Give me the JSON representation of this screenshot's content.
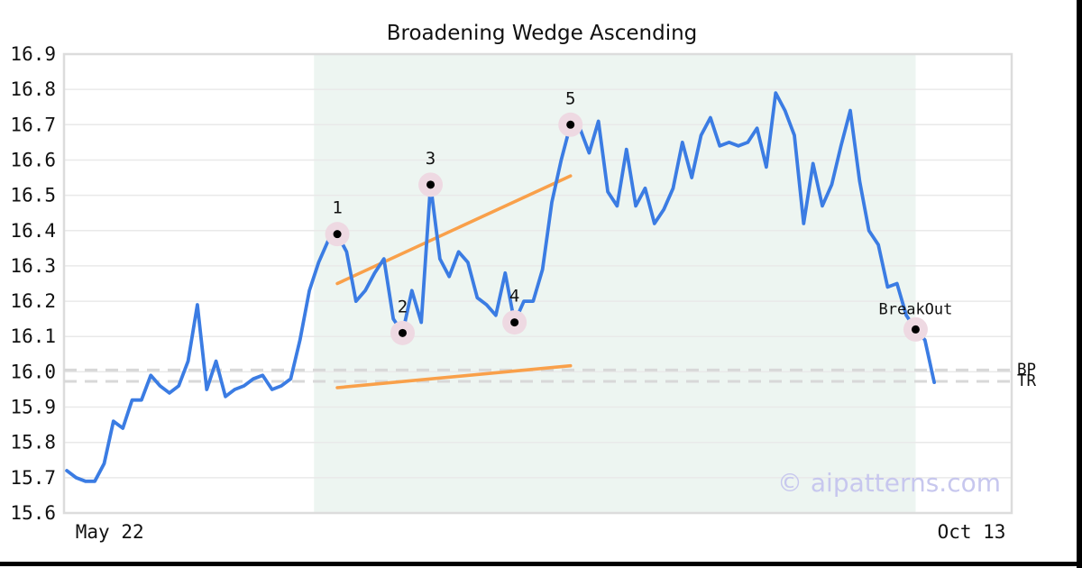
{
  "chart_data": {
    "type": "line",
    "title": "Broadening Wedge Ascending",
    "watermark": "© aipatterns.com",
    "ylim": [
      15.6,
      16.9
    ],
    "xlim": [
      -0.3,
      101.3
    ],
    "y_ticks": [
      "15.6",
      "15.7",
      "15.8",
      "15.9",
      "16.0",
      "16.1",
      "16.2",
      "16.3",
      "16.4",
      "16.5",
      "16.6",
      "16.7",
      "16.8",
      "16.9"
    ],
    "x_ticks": [
      {
        "label": "May 22",
        "index": 4.6
      },
      {
        "label": "Oct 13",
        "index": 97
      }
    ],
    "series": [
      {
        "name": "price",
        "color": "#3b7ce3",
        "values": [
          15.72,
          15.7,
          15.69,
          15.69,
          15.74,
          15.86,
          15.84,
          15.92,
          15.92,
          15.99,
          15.96,
          15.94,
          15.96,
          16.03,
          16.19,
          15.95,
          16.03,
          15.93,
          15.95,
          15.96,
          15.98,
          15.99,
          15.95,
          15.96,
          15.98,
          16.09,
          16.23,
          16.31,
          16.37,
          16.39,
          16.34,
          16.2,
          16.23,
          16.28,
          16.32,
          16.15,
          16.11,
          16.23,
          16.14,
          16.53,
          16.32,
          16.27,
          16.34,
          16.31,
          16.21,
          16.19,
          16.16,
          16.28,
          16.14,
          16.2,
          16.2,
          16.29,
          16.48,
          16.6,
          16.7,
          16.69,
          16.62,
          16.71,
          16.51,
          16.47,
          16.63,
          16.47,
          16.52,
          16.42,
          16.46,
          16.52,
          16.65,
          16.55,
          16.67,
          16.72,
          16.64,
          16.65,
          16.64,
          16.65,
          16.69,
          16.58,
          16.79,
          16.74,
          16.67,
          16.42,
          16.59,
          16.47,
          16.53,
          16.64,
          16.74,
          16.54,
          16.4,
          16.36,
          16.24,
          16.25,
          16.16,
          16.12,
          16.09,
          15.97
        ]
      }
    ],
    "pattern_points": [
      {
        "label": "1",
        "index": 29,
        "value": 16.39
      },
      {
        "label": "2",
        "index": 36,
        "value": 16.11
      },
      {
        "label": "3",
        "index": 39,
        "value": 16.53
      },
      {
        "label": "4",
        "index": 48,
        "value": 16.14
      },
      {
        "label": "5",
        "index": 54,
        "value": 16.7
      },
      {
        "label": "BreakOut",
        "index": 91,
        "value": 16.12
      }
    ],
    "trendlines": [
      {
        "name": "upper",
        "x1": 29,
        "y1": 16.25,
        "x2": 54,
        "y2": 16.555
      },
      {
        "name": "lower",
        "x1": 29,
        "y1": 15.955,
        "x2": 54,
        "y2": 16.017
      }
    ],
    "hlines": [
      {
        "label": "BP",
        "value": 16.005
      },
      {
        "label": "TR",
        "value": 15.973
      }
    ],
    "shaded_region": {
      "from_index": 26.5,
      "to_index": 91
    },
    "colors": {
      "line": "#3b7ce3",
      "trend": "#f9a04a",
      "marker_halo": "#eed9e2",
      "marker_dot": "#000000",
      "region": "#edf5f1",
      "grid": "#e9e9e9",
      "spine": "#dcdcdc",
      "dashed": "#d8d8d8",
      "text": "#111111",
      "watermark": "#c7c7ee"
    }
  }
}
